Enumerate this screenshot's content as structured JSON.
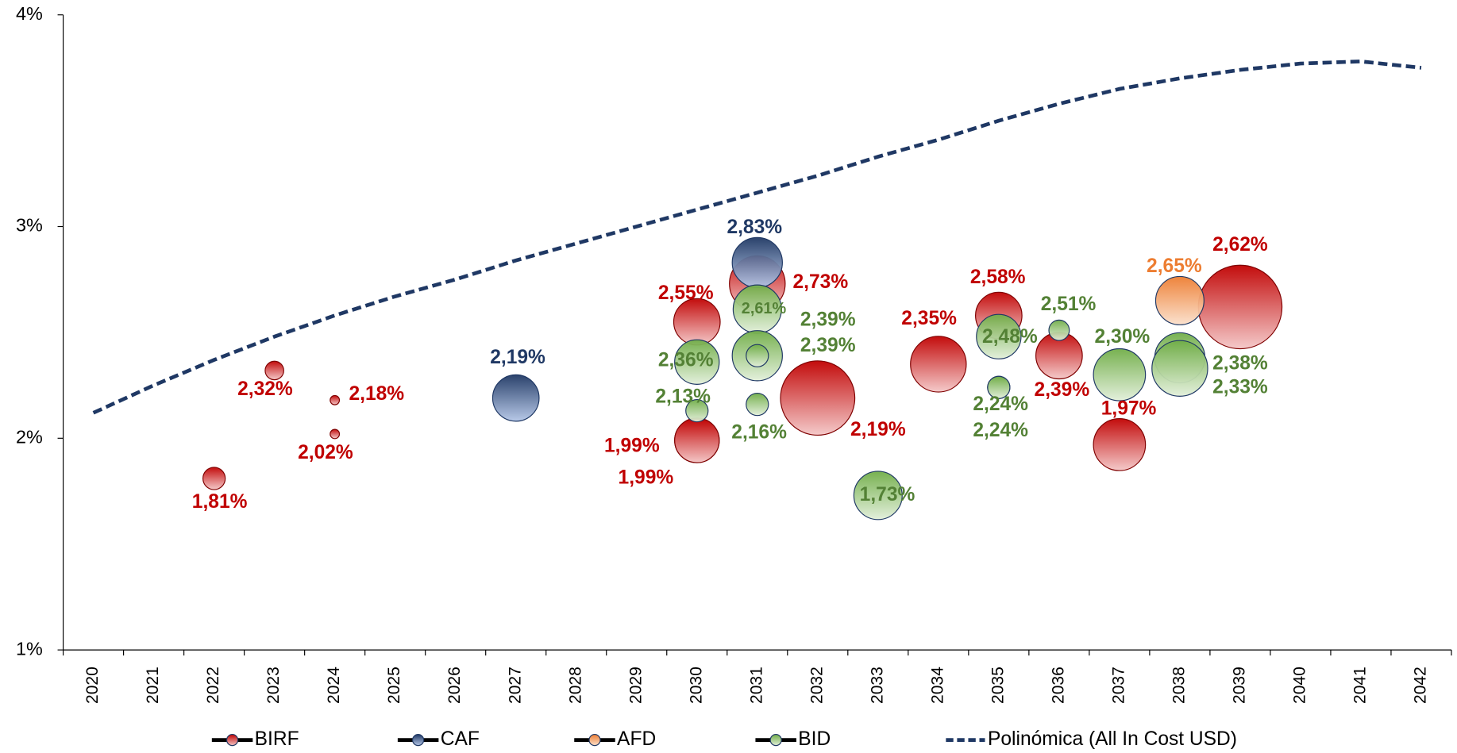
{
  "chart_data": {
    "type": "bubble",
    "categories": [
      "2020",
      "2021",
      "2022",
      "2023",
      "2024",
      "2025",
      "2026",
      "2027",
      "2028",
      "2029",
      "2030",
      "2031",
      "2032",
      "2033",
      "2034",
      "2035",
      "2036",
      "2037",
      "2038",
      "2039",
      "2040",
      "2041",
      "2042"
    ],
    "ylim": [
      1,
      4
    ],
    "yticks": [
      {
        "value": 1,
        "label": "1%"
      },
      {
        "value": 2,
        "label": "2%"
      },
      {
        "value": 3,
        "label": "3%"
      },
      {
        "value": 4,
        "label": "4%"
      }
    ],
    "series": [
      {
        "name": "BIRF",
        "color": "#c00000",
        "light": "#f4c7c7",
        "label_color": "#c00000",
        "x": [
          "2022",
          "2023",
          "2024",
          "2024",
          "2030",
          "2030",
          "2030",
          "2031",
          "2032",
          "2034",
          "2035",
          "2036",
          "2037",
          "2039"
        ],
        "values": [
          1.81,
          2.32,
          2.18,
          2.02,
          2.55,
          1.99,
          1.99,
          2.73,
          2.19,
          2.35,
          2.58,
          2.39,
          1.97,
          2.62
        ],
        "sizes": [
          12,
          10,
          5,
          5,
          25,
          24,
          24,
          30,
          40,
          30,
          25,
          25,
          28,
          45
        ],
        "value_labels": [
          "1,81%",
          "2,32%",
          "2,18%",
          "2,02%",
          "2,55%",
          "1,99%",
          "1,99%",
          "2,73%",
          "2,19%",
          "2,35%",
          "2,58%",
          "2,39%",
          "1,97%",
          "2,62%"
        ]
      },
      {
        "name": "CAF",
        "color": "#1f3864",
        "light": "#b4c6e7",
        "label_color": "#1f3864",
        "x": [
          "2027",
          "2031"
        ],
        "values": [
          2.19,
          2.83
        ],
        "sizes": [
          25,
          27
        ],
        "value_labels": [
          "2,19%",
          "2,83%"
        ]
      },
      {
        "name": "AFD",
        "color": "#ed7d31",
        "light": "#fbe0cc",
        "label_color": "#ed7d31",
        "x": [
          "2038"
        ],
        "values": [
          2.65
        ],
        "sizes": [
          26
        ],
        "value_labels": [
          "2,65%"
        ]
      },
      {
        "name": "BID",
        "color": "#70ad47",
        "light": "#e2efda",
        "label_color": "#538135",
        "x": [
          "2030",
          "2030",
          "2031",
          "2031",
          "2031",
          "2031",
          "2033",
          "2035",
          "2035",
          "2035",
          "2036",
          "2037",
          "2038",
          "2038"
        ],
        "values": [
          2.36,
          2.13,
          2.61,
          2.39,
          2.39,
          2.16,
          1.73,
          2.48,
          2.24,
          2.24,
          2.51,
          2.3,
          2.38,
          2.33
        ],
        "sizes": [
          24,
          12,
          26,
          27,
          12,
          12,
          26,
          24,
          12,
          12,
          11,
          28,
          27,
          30
        ],
        "value_labels": [
          "2,36%",
          "2,13%",
          "2,61%",
          "2,39%",
          "2,39%",
          "2,16%",
          "1,73%",
          "2,48%",
          "2,24%",
          "2,24%",
          "2,51%",
          "2,30%",
          "2,38%",
          "2,33%"
        ]
      }
    ],
    "trend": {
      "name": "Polinómica (All In Cost USD)",
      "color": "#1f3864",
      "values": [
        2.12,
        2.25,
        2.37,
        2.48,
        2.58,
        2.67,
        2.75,
        2.84,
        2.92,
        3.0,
        3.08,
        3.16,
        3.24,
        3.33,
        3.41,
        3.5,
        3.58,
        3.65,
        3.7,
        3.74,
        3.77,
        3.78,
        3.75
      ]
    }
  }
}
